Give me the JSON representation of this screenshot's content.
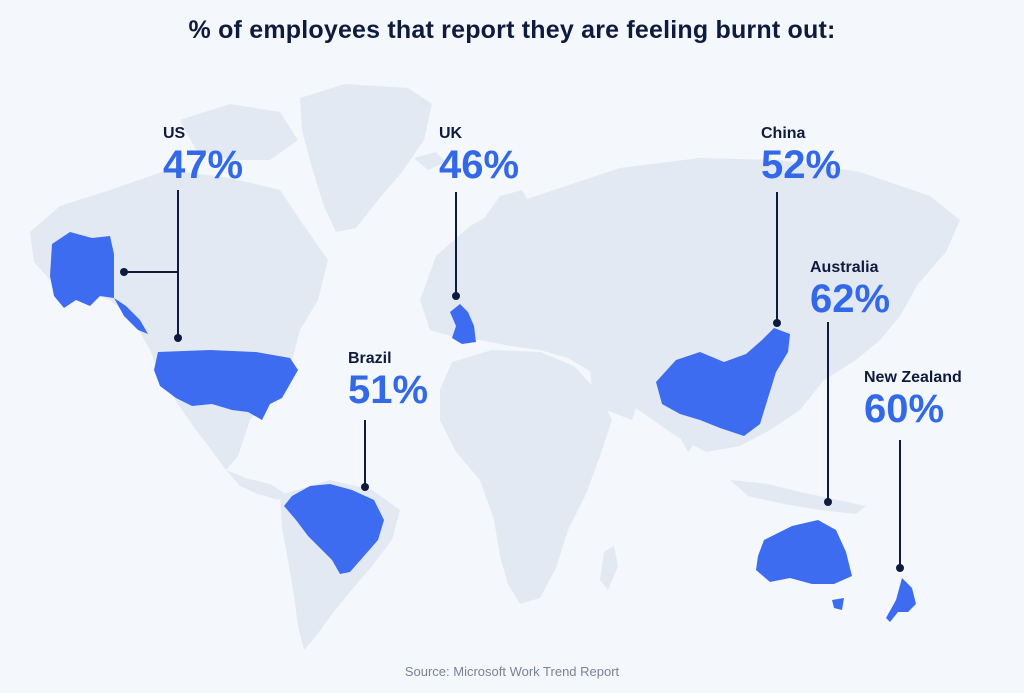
{
  "title": "% of employees that report they are feeling burnt out:",
  "source": "Source: Microsoft Work Trend Report",
  "colors": {
    "background": "#f4f7fc",
    "land": "#e3e9f2",
    "highlight": "#3d6cf0",
    "percent_text": "#3369e8",
    "connector": "#0f1b3d"
  },
  "countries": [
    {
      "name": "US",
      "percent": "47%"
    },
    {
      "name": "UK",
      "percent": "46%"
    },
    {
      "name": "China",
      "percent": "52%"
    },
    {
      "name": "Brazil",
      "percent": "51%"
    },
    {
      "name": "Australia",
      "percent": "62%"
    },
    {
      "name": "New Zealand",
      "percent": "60%"
    }
  ]
}
